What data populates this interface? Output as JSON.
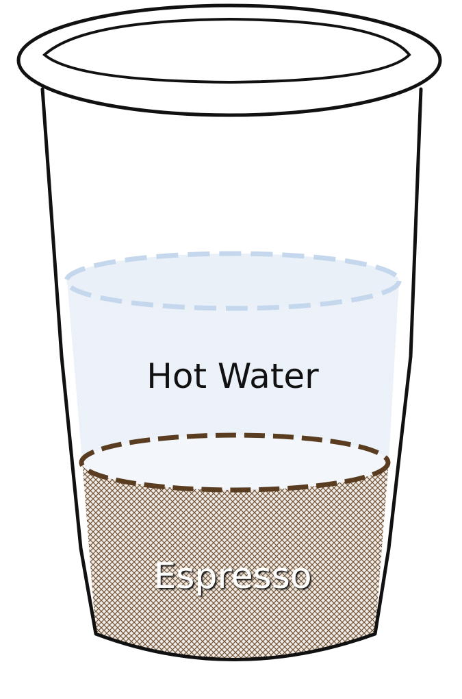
{
  "diagram": {
    "layers": [
      {
        "id": "hot-water",
        "label": "Hot Water",
        "color": "#c5d7ec"
      },
      {
        "id": "espresso",
        "label": "Espresso",
        "color": "#5a3d20"
      }
    ],
    "cup_outline_color": "#111111"
  }
}
